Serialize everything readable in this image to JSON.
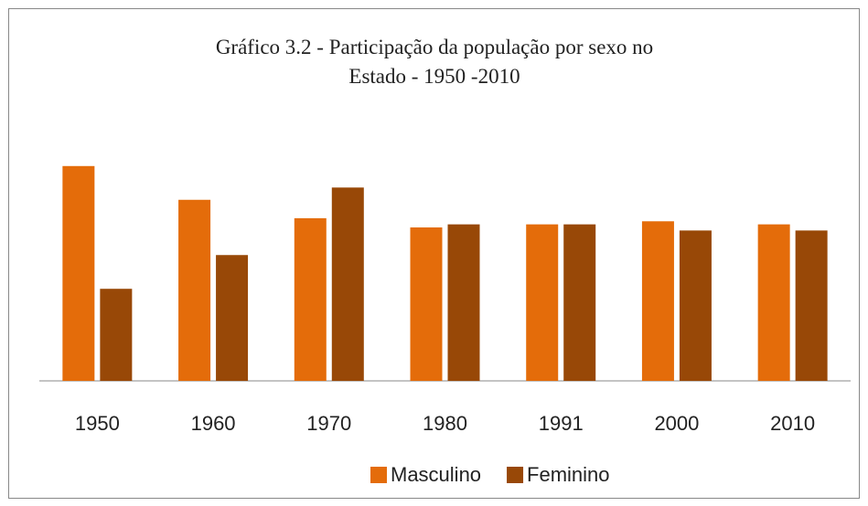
{
  "chart_data": {
    "type": "bar",
    "title": "Gráfico 3.2 - Participação da população por sexo no Estado - 1950 -2010",
    "categories": [
      "1950",
      "1960",
      "1970",
      "1980",
      "1991",
      "2000",
      "2010"
    ],
    "series": [
      {
        "name": "Masculino",
        "color": "#e46c0a",
        "values": [
          52.0,
          50.9,
          50.3,
          50.0,
          50.1,
          50.2,
          50.1
        ]
      },
      {
        "name": "Feminino",
        "color": "#984807",
        "values": [
          48.0,
          49.1,
          51.3,
          50.1,
          50.1,
          49.9,
          49.9
        ]
      }
    ],
    "ylim": [
      45,
      52.5
    ]
  }
}
